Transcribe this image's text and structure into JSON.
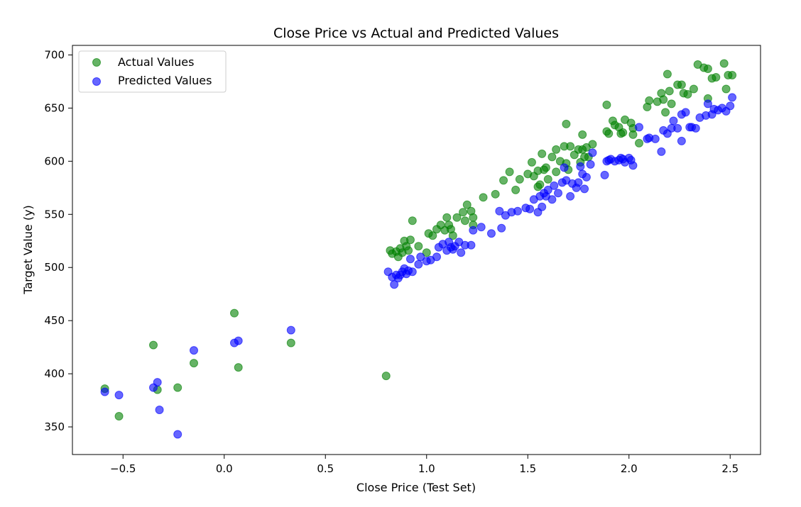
{
  "chart_data": {
    "type": "scatter",
    "title": "Close Price vs Actual and Predicted Values",
    "xlabel": "Close Price (Test Set)",
    "ylabel": "Target Value (y)",
    "xlim": [
      -0.75,
      2.65
    ],
    "ylim": [
      324,
      709
    ],
    "xticks": [
      -0.5,
      0.0,
      0.5,
      1.0,
      1.5,
      2.0,
      2.5
    ],
    "xtick_labels": [
      "−0.5",
      "0.0",
      "0.5",
      "1.0",
      "1.5",
      "2.0",
      "2.5"
    ],
    "yticks": [
      350,
      400,
      450,
      500,
      550,
      600,
      650,
      700
    ],
    "ytick_labels": [
      "350",
      "400",
      "450",
      "500",
      "550",
      "600",
      "650",
      "700"
    ],
    "grid": false,
    "legend_position": "top-left",
    "series": [
      {
        "name": "Actual Values",
        "color": "#008000",
        "alpha": 0.6,
        "points": [
          [
            -0.59,
            386
          ],
          [
            -0.52,
            360
          ],
          [
            -0.35,
            427
          ],
          [
            -0.33,
            385
          ],
          [
            -0.23,
            387
          ],
          [
            -0.15,
            410
          ],
          [
            0.05,
            457
          ],
          [
            0.07,
            406
          ],
          [
            0.33,
            429
          ],
          [
            0.8,
            398
          ],
          [
            0.82,
            516
          ],
          [
            0.83,
            513
          ],
          [
            0.85,
            515
          ],
          [
            0.86,
            510
          ],
          [
            0.87,
            518
          ],
          [
            0.88,
            514
          ],
          [
            0.89,
            525
          ],
          [
            0.9,
            520
          ],
          [
            0.91,
            516
          ],
          [
            0.92,
            526
          ],
          [
            0.93,
            544
          ],
          [
            0.96,
            520
          ],
          [
            1.0,
            514
          ],
          [
            1.01,
            532
          ],
          [
            1.03,
            530
          ],
          [
            1.05,
            536
          ],
          [
            1.07,
            540
          ],
          [
            1.09,
            535
          ],
          [
            1.1,
            547
          ],
          [
            1.11,
            540
          ],
          [
            1.12,
            536
          ],
          [
            1.13,
            530
          ],
          [
            1.15,
            547
          ],
          [
            1.18,
            552
          ],
          [
            1.19,
            544
          ],
          [
            1.2,
            559
          ],
          [
            1.22,
            553
          ],
          [
            1.23,
            547
          ],
          [
            1.23,
            540
          ],
          [
            1.28,
            566
          ],
          [
            1.34,
            569
          ],
          [
            1.38,
            582
          ],
          [
            1.41,
            590
          ],
          [
            1.44,
            573
          ],
          [
            1.46,
            583
          ],
          [
            1.5,
            588
          ],
          [
            1.52,
            599
          ],
          [
            1.53,
            586
          ],
          [
            1.55,
            591
          ],
          [
            1.55,
            576
          ],
          [
            1.56,
            578
          ],
          [
            1.58,
            592
          ],
          [
            1.57,
            607
          ],
          [
            1.59,
            594
          ],
          [
            1.6,
            583
          ],
          [
            1.62,
            604
          ],
          [
            1.64,
            590
          ],
          [
            1.64,
            611
          ],
          [
            1.66,
            600
          ],
          [
            1.68,
            614
          ],
          [
            1.69,
            635
          ],
          [
            1.69,
            598
          ],
          [
            1.7,
            592
          ],
          [
            1.71,
            614
          ],
          [
            1.73,
            606
          ],
          [
            1.75,
            611
          ],
          [
            1.76,
            599
          ],
          [
            1.77,
            611
          ],
          [
            1.77,
            625
          ],
          [
            1.78,
            604
          ],
          [
            1.79,
            613
          ],
          [
            1.8,
            604
          ],
          [
            1.82,
            616
          ],
          [
            1.89,
            653
          ],
          [
            1.89,
            628
          ],
          [
            1.9,
            626
          ],
          [
            1.92,
            638
          ],
          [
            1.93,
            634
          ],
          [
            1.95,
            632
          ],
          [
            1.96,
            626
          ],
          [
            1.97,
            627
          ],
          [
            1.98,
            639
          ],
          [
            2.01,
            636
          ],
          [
            2.02,
            631
          ],
          [
            2.02,
            625
          ],
          [
            2.05,
            617
          ],
          [
            2.09,
            651
          ],
          [
            2.1,
            657
          ],
          [
            2.14,
            656
          ],
          [
            2.16,
            664
          ],
          [
            2.17,
            658
          ],
          [
            2.18,
            646
          ],
          [
            2.19,
            682
          ],
          [
            2.2,
            666
          ],
          [
            2.21,
            654
          ],
          [
            2.24,
            672
          ],
          [
            2.26,
            672
          ],
          [
            2.27,
            664
          ],
          [
            2.29,
            663
          ],
          [
            2.32,
            668
          ],
          [
            2.34,
            691
          ],
          [
            2.37,
            688
          ],
          [
            2.39,
            659
          ],
          [
            2.39,
            687
          ],
          [
            2.41,
            678
          ],
          [
            2.43,
            679
          ],
          [
            2.47,
            692
          ],
          [
            2.48,
            668
          ],
          [
            2.49,
            681
          ],
          [
            2.51,
            681
          ]
        ]
      },
      {
        "name": "Predicted Values",
        "color": "#0000ff",
        "alpha": 0.6,
        "points": [
          [
            -0.59,
            383
          ],
          [
            -0.52,
            380
          ],
          [
            -0.35,
            387
          ],
          [
            -0.33,
            392
          ],
          [
            -0.32,
            366
          ],
          [
            -0.23,
            343
          ],
          [
            -0.15,
            422
          ],
          [
            0.05,
            429
          ],
          [
            0.07,
            431
          ],
          [
            0.33,
            441
          ],
          [
            0.81,
            496
          ],
          [
            0.83,
            491
          ],
          [
            0.84,
            484
          ],
          [
            0.85,
            493
          ],
          [
            0.86,
            490
          ],
          [
            0.87,
            493
          ],
          [
            0.88,
            496
          ],
          [
            0.89,
            499
          ],
          [
            0.9,
            494
          ],
          [
            0.91,
            497
          ],
          [
            0.92,
            508
          ],
          [
            0.93,
            496
          ],
          [
            0.96,
            503
          ],
          [
            0.97,
            510
          ],
          [
            1.0,
            506
          ],
          [
            1.02,
            507
          ],
          [
            1.05,
            510
          ],
          [
            1.06,
            519
          ],
          [
            1.08,
            522
          ],
          [
            1.1,
            516
          ],
          [
            1.11,
            524
          ],
          [
            1.12,
            519
          ],
          [
            1.13,
            517
          ],
          [
            1.14,
            520
          ],
          [
            1.16,
            524
          ],
          [
            1.17,
            514
          ],
          [
            1.19,
            521
          ],
          [
            1.22,
            521
          ],
          [
            1.23,
            535
          ],
          [
            1.27,
            538
          ],
          [
            1.32,
            532
          ],
          [
            1.36,
            553
          ],
          [
            1.37,
            537
          ],
          [
            1.39,
            549
          ],
          [
            1.42,
            552
          ],
          [
            1.45,
            553
          ],
          [
            1.49,
            556
          ],
          [
            1.51,
            555
          ],
          [
            1.53,
            564
          ],
          [
            1.55,
            552
          ],
          [
            1.56,
            567
          ],
          [
            1.57,
            557
          ],
          [
            1.58,
            570
          ],
          [
            1.59,
            567
          ],
          [
            1.6,
            573
          ],
          [
            1.62,
            564
          ],
          [
            1.63,
            577
          ],
          [
            1.65,
            570
          ],
          [
            1.67,
            580
          ],
          [
            1.68,
            594
          ],
          [
            1.69,
            582
          ],
          [
            1.71,
            567
          ],
          [
            1.72,
            579
          ],
          [
            1.74,
            575
          ],
          [
            1.75,
            580
          ],
          [
            1.76,
            595
          ],
          [
            1.77,
            588
          ],
          [
            1.78,
            574
          ],
          [
            1.79,
            585
          ],
          [
            1.81,
            597
          ],
          [
            1.82,
            608
          ],
          [
            1.88,
            587
          ],
          [
            1.89,
            600
          ],
          [
            1.9,
            601
          ],
          [
            1.91,
            602
          ],
          [
            1.93,
            600
          ],
          [
            1.95,
            601
          ],
          [
            1.96,
            603
          ],
          [
            1.97,
            602
          ],
          [
            1.98,
            599
          ],
          [
            2.0,
            603
          ],
          [
            2.01,
            601
          ],
          [
            2.02,
            596
          ],
          [
            2.05,
            632
          ],
          [
            2.09,
            621
          ],
          [
            2.1,
            622
          ],
          [
            2.13,
            621
          ],
          [
            2.16,
            609
          ],
          [
            2.17,
            629
          ],
          [
            2.19,
            626
          ],
          [
            2.21,
            631
          ],
          [
            2.22,
            638
          ],
          [
            2.24,
            631
          ],
          [
            2.26,
            619
          ],
          [
            2.26,
            644
          ],
          [
            2.28,
            646
          ],
          [
            2.3,
            632
          ],
          [
            2.31,
            632
          ],
          [
            2.33,
            631
          ],
          [
            2.35,
            641
          ],
          [
            2.38,
            643
          ],
          [
            2.39,
            654
          ],
          [
            2.41,
            644
          ],
          [
            2.42,
            649
          ],
          [
            2.44,
            648
          ],
          [
            2.46,
            650
          ],
          [
            2.48,
            647
          ],
          [
            2.5,
            652
          ],
          [
            2.51,
            660
          ]
        ]
      }
    ]
  }
}
